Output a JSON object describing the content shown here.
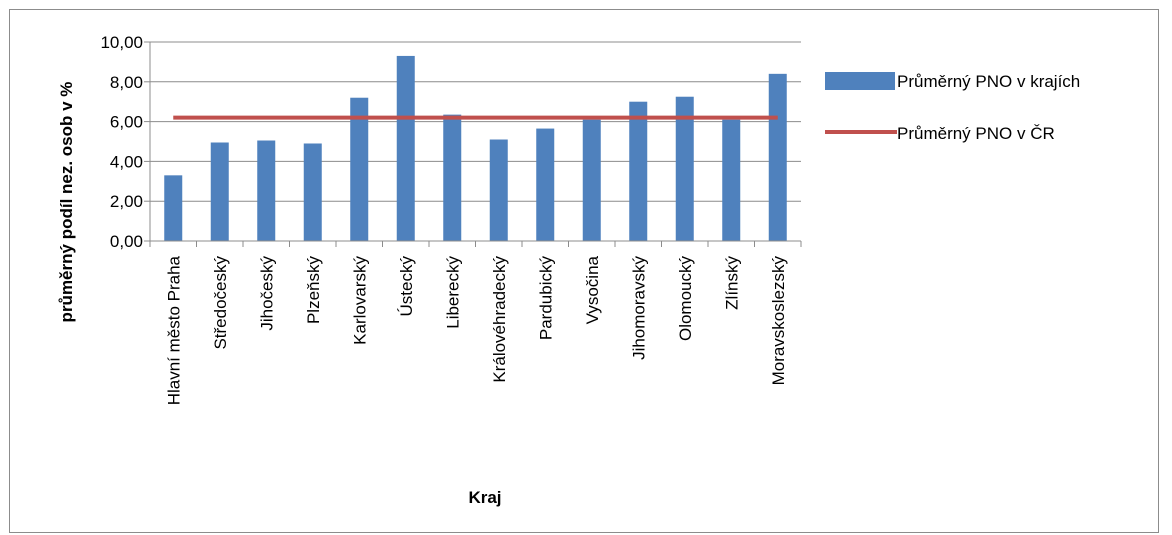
{
  "chart_data": {
    "type": "bar",
    "xlabel": "Kraj",
    "ylabel": "průměrný podíl nez. osob v %",
    "ylim": [
      0,
      10
    ],
    "ytick_step": 2,
    "ytick_labels": [
      "0,00",
      "2,00",
      "4,00",
      "6,00",
      "8,00",
      "10,00"
    ],
    "categories": [
      "Hlavní město Praha",
      "Středočeský",
      "Jihočeský",
      "Plzeňský",
      "Karlovarský",
      "Ústecký",
      "Liberecký",
      "Královéhradecký",
      "Pardubický",
      "Vysočina",
      "Jihomoravský",
      "Olomoucký",
      "Zlínský",
      "Moravskoslezský"
    ],
    "series": [
      {
        "name": "Průměrný PNO v krajích",
        "kind": "bar",
        "color": "#4F81BD",
        "values": [
          3.3,
          4.95,
          5.05,
          4.9,
          7.2,
          9.3,
          6.35,
          5.1,
          5.65,
          6.1,
          7.0,
          7.25,
          6.1,
          8.4
        ]
      },
      {
        "name": "Průměrný PNO v ČR",
        "kind": "line",
        "color": "#C0504D",
        "value": 6.2
      }
    ],
    "grid": "horizontal",
    "legend_position": "right"
  }
}
